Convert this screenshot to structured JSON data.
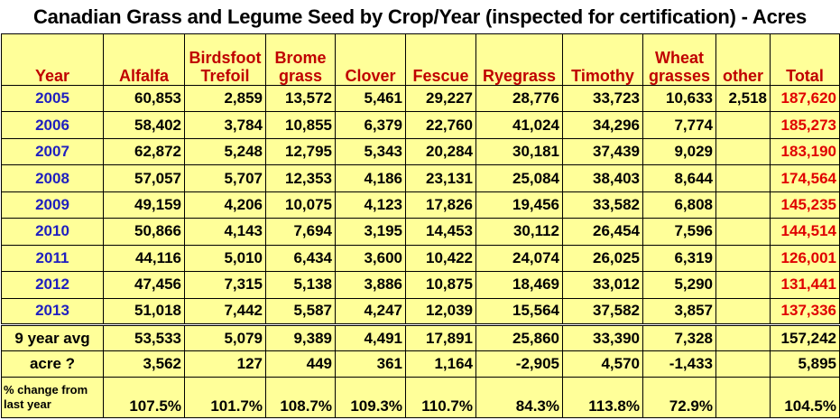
{
  "chart_data": {
    "type": "table",
    "title": "Canadian Grass and Legume Seed by Crop/Year (inspected for certification) - Acres",
    "columns": [
      {
        "key": "year",
        "label_lines": [
          "Year"
        ]
      },
      {
        "key": "alfalfa",
        "label_lines": [
          "Alfalfa"
        ]
      },
      {
        "key": "birdsfoot_trefoil",
        "label_lines": [
          "Birdsfoot",
          "Trefoil"
        ]
      },
      {
        "key": "brome_grass",
        "label_lines": [
          "Brome",
          "grass"
        ]
      },
      {
        "key": "clover",
        "label_lines": [
          "Clover"
        ]
      },
      {
        "key": "fescue",
        "label_lines": [
          "Fescue"
        ]
      },
      {
        "key": "ryegrass",
        "label_lines": [
          "Ryegrass"
        ]
      },
      {
        "key": "timothy",
        "label_lines": [
          "Timothy"
        ]
      },
      {
        "key": "wheat_grasses",
        "label_lines": [
          "Wheat",
          "grasses"
        ]
      },
      {
        "key": "other",
        "label_lines": [
          "other"
        ]
      },
      {
        "key": "total",
        "label_lines": [
          "Total"
        ]
      }
    ],
    "rows": [
      [
        "2005",
        "60,853",
        "2,859",
        "13,572",
        "5,461",
        "29,227",
        "28,776",
        "33,723",
        "10,633",
        "2,518",
        "187,620"
      ],
      [
        "2006",
        "58,402",
        "3,784",
        "10,855",
        "6,379",
        "22,760",
        "41,024",
        "34,296",
        "7,774",
        "",
        "185,273"
      ],
      [
        "2007",
        "62,872",
        "5,248",
        "12,795",
        "5,343",
        "20,284",
        "30,181",
        "37,439",
        "9,029",
        "",
        "183,190"
      ],
      [
        "2008",
        "57,057",
        "5,707",
        "12,353",
        "4,186",
        "23,131",
        "25,084",
        "38,403",
        "8,644",
        "",
        "174,564"
      ],
      [
        "2009",
        "49,159",
        "4,206",
        "10,075",
        "4,123",
        "17,826",
        "19,456",
        "33,582",
        "6,808",
        "",
        "145,235"
      ],
      [
        "2010",
        "50,866",
        "4,143",
        "7,694",
        "3,195",
        "14,453",
        "30,112",
        "26,454",
        "7,596",
        "",
        "144,514"
      ],
      [
        "2011",
        "44,116",
        "5,010",
        "6,434",
        "3,600",
        "10,422",
        "24,074",
        "26,025",
        "6,319",
        "",
        "126,001"
      ],
      [
        "2012",
        "47,456",
        "7,315",
        "5,138",
        "3,886",
        "10,875",
        "18,469",
        "33,012",
        "5,290",
        "",
        "131,441"
      ],
      [
        "2013",
        "51,018",
        "7,442",
        "5,587",
        "4,247",
        "12,039",
        "15,564",
        "37,582",
        "3,857",
        "",
        "137,336"
      ]
    ],
    "summary_rows": [
      {
        "label": "9 year avg",
        "values": [
          "53,533",
          "5,079",
          "9,389",
          "4,491",
          "17,891",
          "25,860",
          "33,390",
          "7,328",
          "",
          "157,242"
        ]
      },
      {
        "label": "acre ?",
        "values": [
          "3,562",
          "127",
          "449",
          "361",
          "1,164",
          "-2,905",
          "4,570",
          "-1,433",
          "",
          "5,895"
        ]
      },
      {
        "label": "% change from last year",
        "values": [
          "107.5%",
          "101.7%",
          "108.7%",
          "109.3%",
          "110.7%",
          "84.3%",
          "113.8%",
          "72.9%",
          "",
          "104.5%"
        ]
      }
    ],
    "colors": {
      "cell_background": "#ffff99",
      "header_text": "#c00000",
      "year_text": "#1f1fbf",
      "total_text": "#e00000",
      "value_text": "#000000",
      "grid_lines": "#000000"
    }
  }
}
